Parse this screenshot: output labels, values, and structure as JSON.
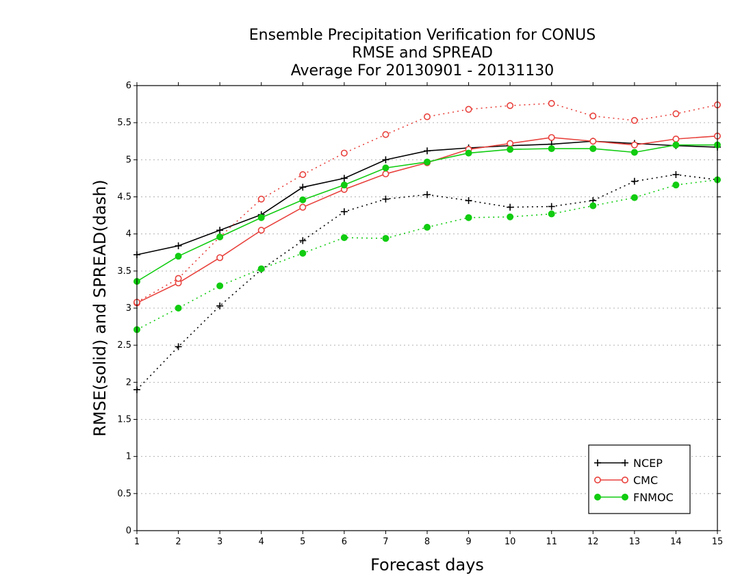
{
  "chart_data": {
    "type": "line",
    "title_lines": [
      "Ensemble Precipitation Verification for CONUS",
      "RMSE and SPREAD",
      "Average For 20130901 - 20131130"
    ],
    "xlabel": "Forecast days",
    "ylabel": "RMSE(solid) and SPREAD(dash)",
    "x": [
      1,
      2,
      3,
      4,
      5,
      6,
      7,
      8,
      9,
      10,
      11,
      12,
      13,
      14,
      15
    ],
    "xlim": [
      1,
      15
    ],
    "ylim": [
      0,
      6
    ],
    "yticks": [
      0,
      0.5,
      1,
      1.5,
      2,
      2.5,
      3,
      3.5,
      4,
      4.5,
      5,
      5.5,
      6
    ],
    "ytick_labels": [
      "0",
      "0.5",
      "1",
      "1.5",
      "2",
      "2.5",
      "3",
      "3.5",
      "4",
      "4.5",
      "5",
      "5.5",
      "6"
    ],
    "xtick_labels": [
      "1",
      "2",
      "3",
      "4",
      "5",
      "6",
      "7",
      "8",
      "9",
      "10",
      "11",
      "12",
      "13",
      "14",
      "15"
    ],
    "grid": "horizontal dotted",
    "legend_position": "bottom-right",
    "series": [
      {
        "name": "NCEP",
        "metric": "RMSE",
        "style": "solid",
        "marker": "plus",
        "color": "#000000",
        "values": [
          3.72,
          3.84,
          4.05,
          4.26,
          4.63,
          4.75,
          5.0,
          5.12,
          5.16,
          5.19,
          5.21,
          5.25,
          5.22,
          5.19,
          5.17
        ]
      },
      {
        "name": "NCEP",
        "metric": "SPREAD",
        "style": "dash",
        "marker": "plus",
        "color": "#000000",
        "values": [
          1.9,
          2.48,
          3.03,
          3.52,
          3.91,
          4.3,
          4.47,
          4.53,
          4.45,
          4.36,
          4.37,
          4.45,
          4.71,
          4.8,
          4.73
        ]
      },
      {
        "name": "CMC",
        "metric": "RMSE",
        "style": "solid",
        "marker": "open-circle",
        "color": "#e8413c",
        "values": [
          3.07,
          3.34,
          3.68,
          4.05,
          4.36,
          4.6,
          4.81,
          4.96,
          5.14,
          5.22,
          5.3,
          5.25,
          5.2,
          5.28,
          5.32
        ]
      },
      {
        "name": "CMC",
        "metric": "SPREAD",
        "style": "dash",
        "marker": "open-circle",
        "color": "#e8413c",
        "values": [
          3.08,
          3.4,
          3.96,
          4.47,
          4.8,
          5.09,
          5.34,
          5.58,
          5.68,
          5.73,
          5.76,
          5.59,
          5.53,
          5.62,
          5.74
        ]
      },
      {
        "name": "FNMOC",
        "metric": "RMSE",
        "style": "solid",
        "marker": "filled-circle",
        "color": "#11cc11",
        "values": [
          3.36,
          3.7,
          3.96,
          4.22,
          4.46,
          4.66,
          4.89,
          4.97,
          5.09,
          5.14,
          5.15,
          5.15,
          5.1,
          5.2,
          5.2
        ]
      },
      {
        "name": "FNMOC",
        "metric": "SPREAD",
        "style": "dash",
        "marker": "filled-circle",
        "color": "#11cc11",
        "values": [
          2.71,
          3.0,
          3.3,
          3.53,
          3.74,
          3.95,
          3.94,
          4.09,
          4.22,
          4.23,
          4.27,
          4.38,
          4.49,
          4.66,
          4.73
        ]
      }
    ],
    "legend": [
      {
        "label": "NCEP",
        "marker": "plus",
        "color": "#000000"
      },
      {
        "label": "CMC",
        "marker": "open-circle",
        "color": "#e8413c"
      },
      {
        "label": "FNMOC",
        "marker": "filled-circle",
        "color": "#11cc11"
      }
    ]
  }
}
